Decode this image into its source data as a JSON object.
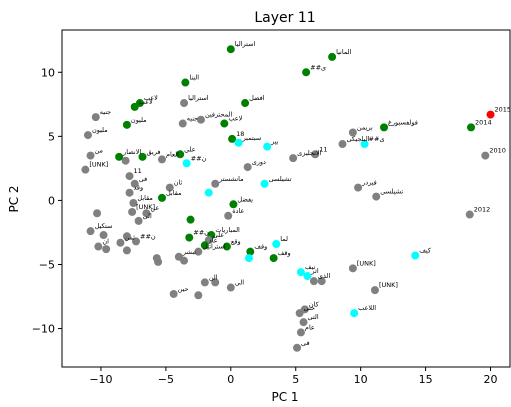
{
  "chart_data": {
    "type": "scatter",
    "title": "Layer 11",
    "xlabel": "PC 1",
    "ylabel": "PC 2",
    "xlim": [
      -13,
      21.5
    ],
    "ylim": [
      -13,
      13.3
    ],
    "xticks": [
      -10,
      -5,
      0,
      5,
      10,
      15,
      20
    ],
    "yticks": [
      -10,
      -5,
      0,
      5,
      10
    ],
    "grid": false,
    "colors": {
      "gray": "#808080",
      "green": "#008000",
      "cyan": "#00ffff",
      "red": "#ff0000"
    },
    "points": [
      {
        "x": 0.0,
        "y": 11.8,
        "color": "green",
        "label": "استرالیا"
      },
      {
        "x": 7.8,
        "y": 11.2,
        "color": "green",
        "label": "المانیا"
      },
      {
        "x": 5.8,
        "y": 10.0,
        "color": "green",
        "label": "##ی"
      },
      {
        "x": -3.5,
        "y": 9.2,
        "color": "green",
        "label": "البنا"
      },
      {
        "x": -7.0,
        "y": 7.6,
        "color": "green",
        "label": "لاعب"
      },
      {
        "x": -7.4,
        "y": 7.3,
        "color": "green",
        "label": "لاعب"
      },
      {
        "x": -3.6,
        "y": 7.6,
        "color": "gray",
        "label": "استرالیا"
      },
      {
        "x": 1.1,
        "y": 7.6,
        "color": "green",
        "label": "افضل"
      },
      {
        "x": -10.4,
        "y": 6.5,
        "color": "gray",
        "label": "جنیه"
      },
      {
        "x": -2.3,
        "y": 6.3,
        "color": "gray",
        "label": "المحترفین"
      },
      {
        "x": -3.7,
        "y": 6.0,
        "color": "gray",
        "label": "جنیه"
      },
      {
        "x": -8.0,
        "y": 5.9,
        "color": "green",
        "label": "ملیون"
      },
      {
        "x": -0.5,
        "y": 6.0,
        "color": "green",
        "label": "لاعب"
      },
      {
        "x": -11.0,
        "y": 5.1,
        "color": "gray",
        "label": "ملیون"
      },
      {
        "x": 11.8,
        "y": 5.7,
        "color": "green",
        "label": "فولفسبورغ"
      },
      {
        "x": 18.5,
        "y": 5.7,
        "color": "green",
        "label": "2014"
      },
      {
        "x": 20.0,
        "y": 6.7,
        "color": "red",
        "label": "2015"
      },
      {
        "x": 9.4,
        "y": 5.3,
        "color": "gray",
        "label": "بریمن"
      },
      {
        "x": 10.3,
        "y": 4.4,
        "color": "cyan",
        "label": "##ی"
      },
      {
        "x": 8.6,
        "y": 4.4,
        "color": "gray",
        "label": "البلجیکی"
      },
      {
        "x": 0.1,
        "y": 4.8,
        "color": "green",
        "label": "18"
      },
      {
        "x": 0.6,
        "y": 4.5,
        "color": "cyan",
        "label": "سبتمبر"
      },
      {
        "x": 2.8,
        "y": 4.2,
        "color": "cyan",
        "label": "بیر"
      },
      {
        "x": 19.6,
        "y": 3.5,
        "color": "gray",
        "label": "2010"
      },
      {
        "x": 6.5,
        "y": 3.6,
        "color": "gray",
        "label": "11"
      },
      {
        "x": 4.8,
        "y": 3.3,
        "color": "gray",
        "label": "الانجلیزی"
      },
      {
        "x": -10.8,
        "y": 3.5,
        "color": "gray",
        "label": "من"
      },
      {
        "x": -8.6,
        "y": 3.4,
        "color": "green",
        "label": "الانصار"
      },
      {
        "x": -8.1,
        "y": 3.1,
        "color": "gray",
        "label": ""
      },
      {
        "x": -6.8,
        "y": 3.4,
        "color": "green",
        "label": "فریق"
      },
      {
        "x": -5.3,
        "y": 3.2,
        "color": "gray",
        "label": "العام"
      },
      {
        "x": -3.9,
        "y": 3.6,
        "color": "green",
        "label": "علی"
      },
      {
        "x": -3.4,
        "y": 2.9,
        "color": "cyan",
        "label": "##ن"
      },
      {
        "x": -11.2,
        "y": 2.4,
        "color": "gray",
        "label": "[UNK]"
      },
      {
        "x": 1.3,
        "y": 2.6,
        "color": "gray",
        "label": "دوری"
      },
      {
        "x": -7.8,
        "y": 1.9,
        "color": "gray",
        "label": "11"
      },
      {
        "x": 2.6,
        "y": 1.3,
        "color": "cyan",
        "label": "تشیلسی"
      },
      {
        "x": -1.2,
        "y": 1.3,
        "color": "gray",
        "label": "مانشستر"
      },
      {
        "x": 9.8,
        "y": 1.0,
        "color": "gray",
        "label": "فیردر"
      },
      {
        "x": -7.4,
        "y": 1.3,
        "color": "gray",
        "label": "فی"
      },
      {
        "x": -4.7,
        "y": 1.0,
        "color": "gray",
        "label": "ثان"
      },
      {
        "x": -1.7,
        "y": 0.6,
        "color": "cyan",
        "label": ""
      },
      {
        "x": -7.8,
        "y": 0.6,
        "color": "gray",
        "label": "وقد"
      },
      {
        "x": 11.2,
        "y": 0.3,
        "color": "gray",
        "label": "تشیلسی"
      },
      {
        "x": -5.3,
        "y": 0.2,
        "color": "green",
        "label": "مقابل"
      },
      {
        "x": -7.5,
        "y": -0.2,
        "color": "gray",
        "label": "مقابل"
      },
      {
        "x": 0.2,
        "y": -0.3,
        "color": "green",
        "label": "یفضل"
      },
      {
        "x": -7.6,
        "y": -0.9,
        "color": "gray",
        "label": "[UNK]"
      },
      {
        "x": 18.4,
        "y": -1.1,
        "color": "gray",
        "label": "2012"
      },
      {
        "x": -6.5,
        "y": -1.0,
        "color": "gray",
        "label": "عن"
      },
      {
        "x": -10.3,
        "y": -1.0,
        "color": "gray",
        "label": ""
      },
      {
        "x": -0.2,
        "y": -1.2,
        "color": "gray",
        "label": "عادة"
      },
      {
        "x": -7.1,
        "y": -1.6,
        "color": "gray",
        "label": "الی"
      },
      {
        "x": -3.1,
        "y": -1.5,
        "color": "green",
        "label": ""
      },
      {
        "x": -10.8,
        "y": -2.4,
        "color": "gray",
        "label": "ستکیل"
      },
      {
        "x": -9.8,
        "y": -2.7,
        "color": "gray",
        "label": ""
      },
      {
        "x": -8.0,
        "y": -2.8,
        "color": "gray",
        "label": ""
      },
      {
        "x": -3.2,
        "y": -2.9,
        "color": "green",
        "label": "##ن"
      },
      {
        "x": -1.5,
        "y": -2.7,
        "color": "green",
        "label": "المباریات"
      },
      {
        "x": -1.7,
        "y": -3.1,
        "color": "gray",
        "label": "علی"
      },
      {
        "x": -7.3,
        "y": -3.2,
        "color": "gray",
        "label": "##ن"
      },
      {
        "x": -8.5,
        "y": -3.3,
        "color": "gray",
        "label": "ثمن"
      },
      {
        "x": -2.0,
        "y": -3.5,
        "color": "green",
        "label": "عاد"
      },
      {
        "x": -0.3,
        "y": -3.6,
        "color": "green",
        "label": "وقع"
      },
      {
        "x": 3.5,
        "y": -3.4,
        "color": "cyan",
        "label": "لما"
      },
      {
        "x": -10.2,
        "y": -3.6,
        "color": "gray",
        "label": "ان"
      },
      {
        "x": -9.6,
        "y": -3.8,
        "color": "gray",
        "label": ""
      },
      {
        "x": -8.0,
        "y": -3.9,
        "color": "gray",
        "label": ""
      },
      {
        "x": -2.5,
        "y": -4.0,
        "color": "gray",
        "label": "استراتیل"
      },
      {
        "x": 1.5,
        "y": -4.0,
        "color": "green",
        "label": "وقف"
      },
      {
        "x": -4.0,
        "y": -4.4,
        "color": "gray",
        "label": "تبشر"
      },
      {
        "x": -3.6,
        "y": -4.7,
        "color": "gray",
        "label": ""
      },
      {
        "x": 1.4,
        "y": -4.5,
        "color": "cyan",
        "label": ""
      },
      {
        "x": 3.3,
        "y": -4.5,
        "color": "green",
        "label": "وقف"
      },
      {
        "x": -5.7,
        "y": -4.5,
        "color": "gray",
        "label": ""
      },
      {
        "x": -5.6,
        "y": -4.8,
        "color": "gray",
        "label": ""
      },
      {
        "x": 9.4,
        "y": -5.3,
        "color": "gray",
        "label": "[UNK]"
      },
      {
        "x": 14.2,
        "y": -4.3,
        "color": "cyan",
        "label": "کیف"
      },
      {
        "x": 5.4,
        "y": -5.6,
        "color": "cyan",
        "label": "نیف"
      },
      {
        "x": 5.9,
        "y": -5.9,
        "color": "cyan",
        "label": "اثر"
      },
      {
        "x": 6.4,
        "y": -6.3,
        "color": "gray",
        "label": "الذی"
      },
      {
        "x": 7.0,
        "y": -6.3,
        "color": "gray",
        "label": ""
      },
      {
        "x": -2.0,
        "y": -6.4,
        "color": "gray",
        "label": "الن"
      },
      {
        "x": -1.2,
        "y": -6.4,
        "color": "gray",
        "label": ""
      },
      {
        "x": 0.0,
        "y": -6.8,
        "color": "gray",
        "label": "الی"
      },
      {
        "x": -4.4,
        "y": -7.3,
        "color": "gray",
        "label": "حین"
      },
      {
        "x": -2.5,
        "y": -7.4,
        "color": "gray",
        "label": ""
      },
      {
        "x": 11.1,
        "y": -7.0,
        "color": "gray",
        "label": "[UNK]"
      },
      {
        "x": 5.7,
        "y": -8.5,
        "color": "gray",
        "label": "کان"
      },
      {
        "x": 5.3,
        "y": -8.8,
        "color": "gray",
        "label": "حتی"
      },
      {
        "x": 9.5,
        "y": -8.8,
        "color": "cyan",
        "label": "اللاعب"
      },
      {
        "x": 5.6,
        "y": -9.5,
        "color": "gray",
        "label": "التی"
      },
      {
        "x": 5.4,
        "y": -10.3,
        "color": "gray",
        "label": "عام"
      },
      {
        "x": 5.1,
        "y": -11.5,
        "color": "gray",
        "label": "فی"
      }
    ]
  }
}
